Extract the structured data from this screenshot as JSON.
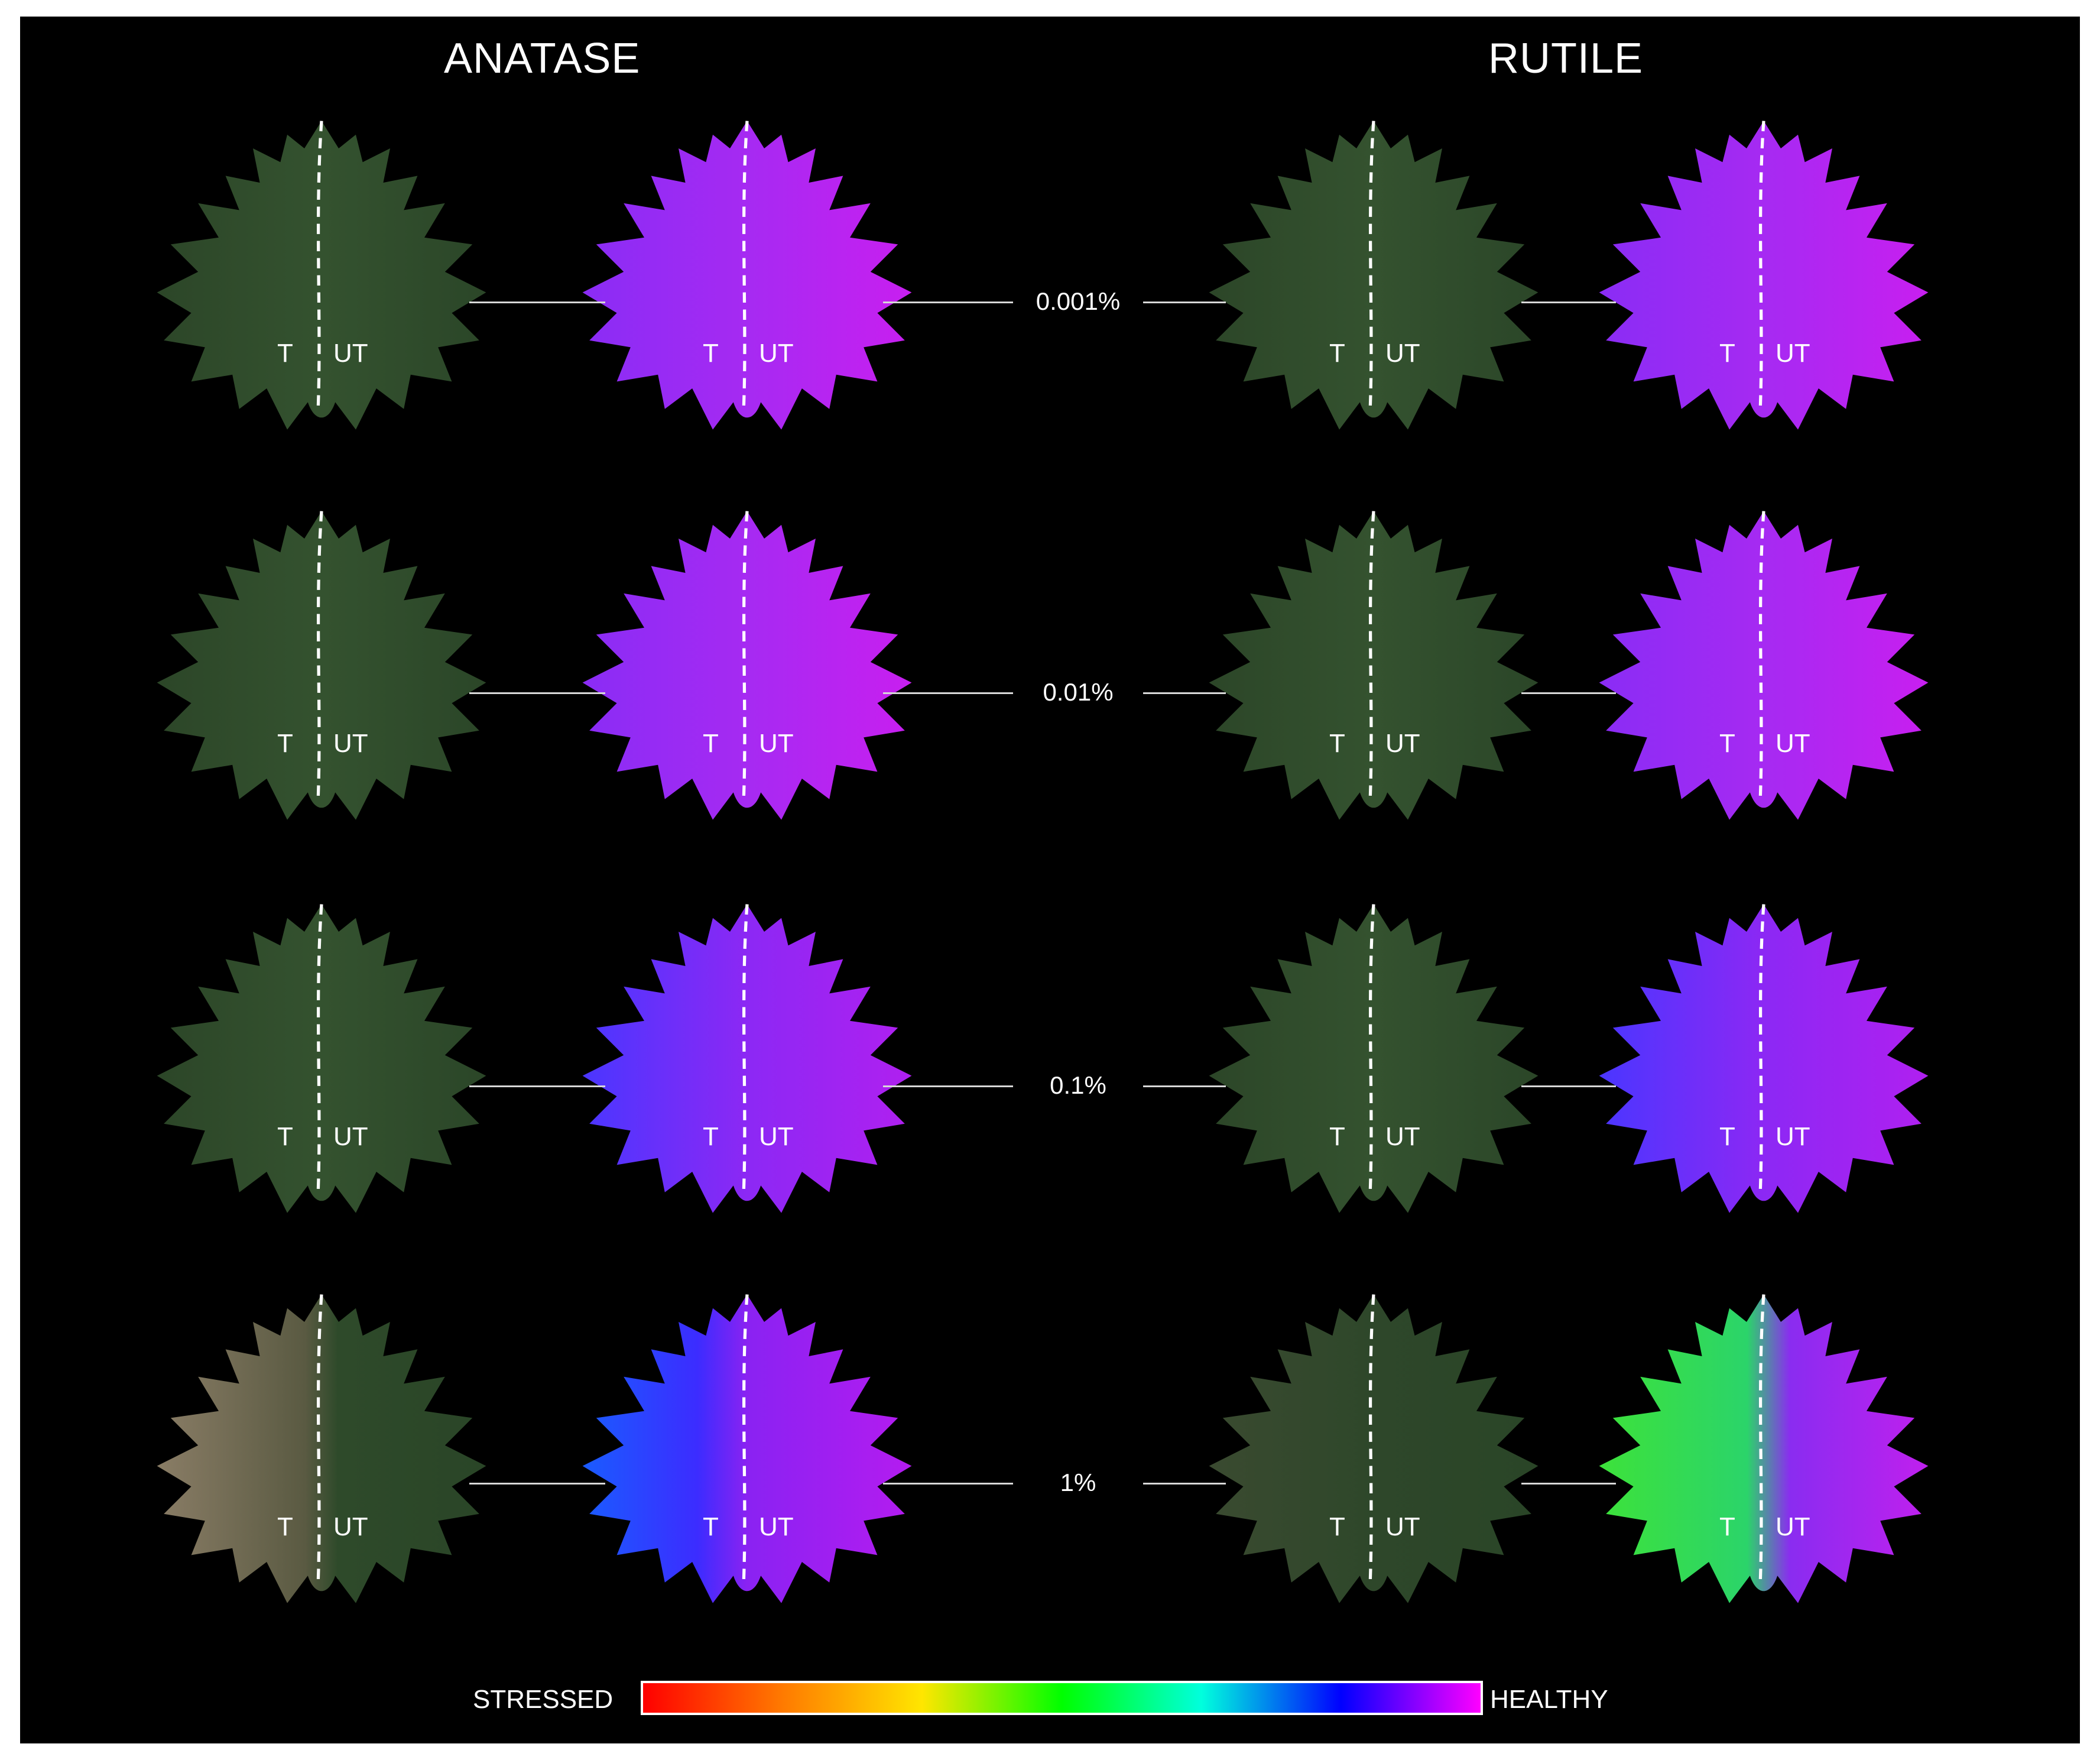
{
  "titles": {
    "left": "ANATASE",
    "right": "RUTILE"
  },
  "labels": {
    "treated": "T",
    "untreated": "UT"
  },
  "concentrations": [
    "0.001%",
    "0.01%",
    "0.1%",
    "1%"
  ],
  "scale": {
    "low": "STRESSED",
    "high": "HEALTHY",
    "gradient": [
      "#ff0000",
      "#ff7a00",
      "#ffe600",
      "#00ff00",
      "#00ffdd",
      "#0000ff",
      "#ff00ff"
    ]
  },
  "colors": {
    "leaf_green": "#2f4a2a",
    "leaf_purple": "#9a2cf5",
    "stress_green": "#4ce63b"
  }
}
